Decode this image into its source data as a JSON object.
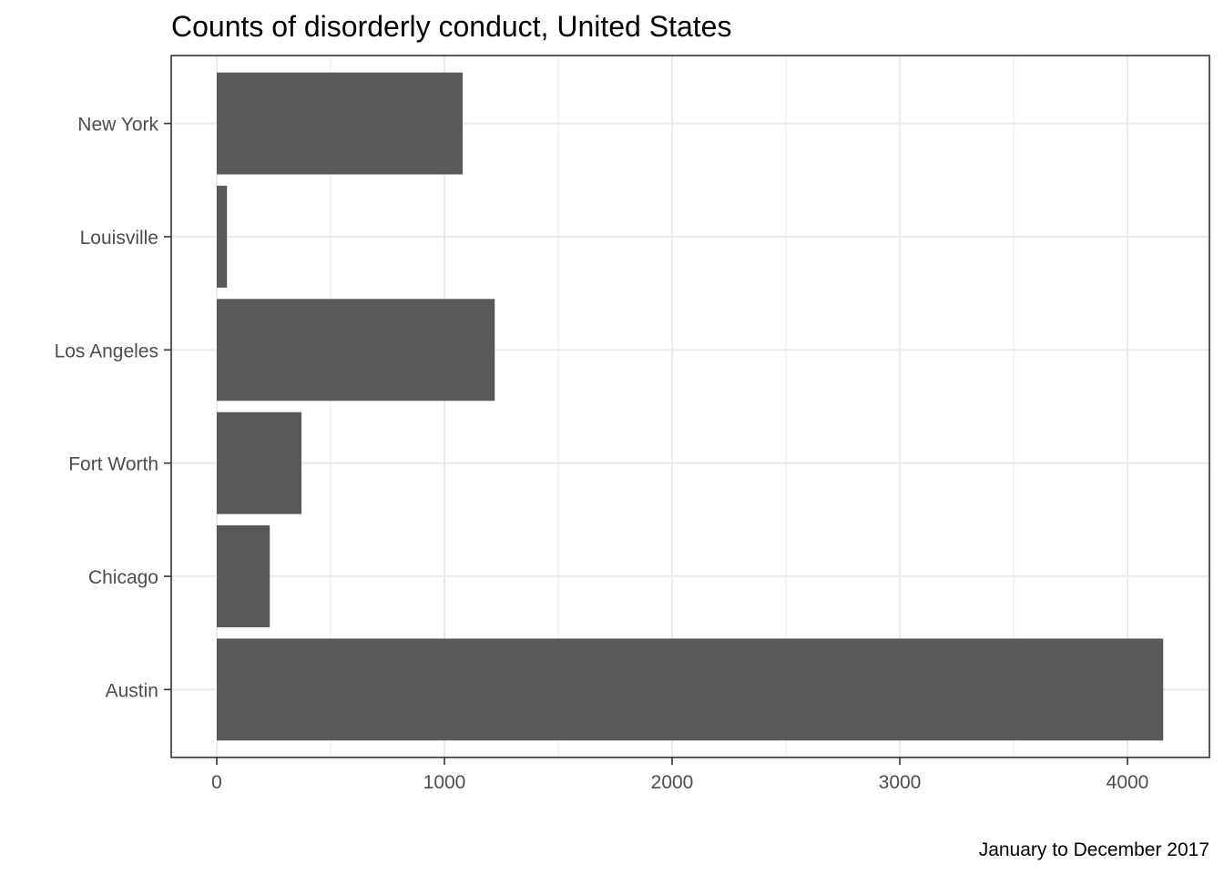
{
  "chart_data": {
    "type": "bar",
    "orientation": "horizontal",
    "title": "Counts of disorderly conduct, United States",
    "caption": "January to December 2017",
    "xlabel": "",
    "ylabel": "",
    "categories": [
      "Austin",
      "Chicago",
      "Fort Worth",
      "Los Angeles",
      "Louisville",
      "New York"
    ],
    "values": [
      4157,
      233,
      372,
      1221,
      45,
      1080
    ],
    "xlim": [
      -200,
      4360
    ],
    "xticks": [
      0,
      1000,
      2000,
      3000,
      4000
    ],
    "major_grid": true,
    "minor_grid": true,
    "legend": "none",
    "colors": {
      "bar": "#595959",
      "grid": "#ebebeb",
      "panel_border": "#333333",
      "tick_label": "#4d4d4d"
    }
  }
}
